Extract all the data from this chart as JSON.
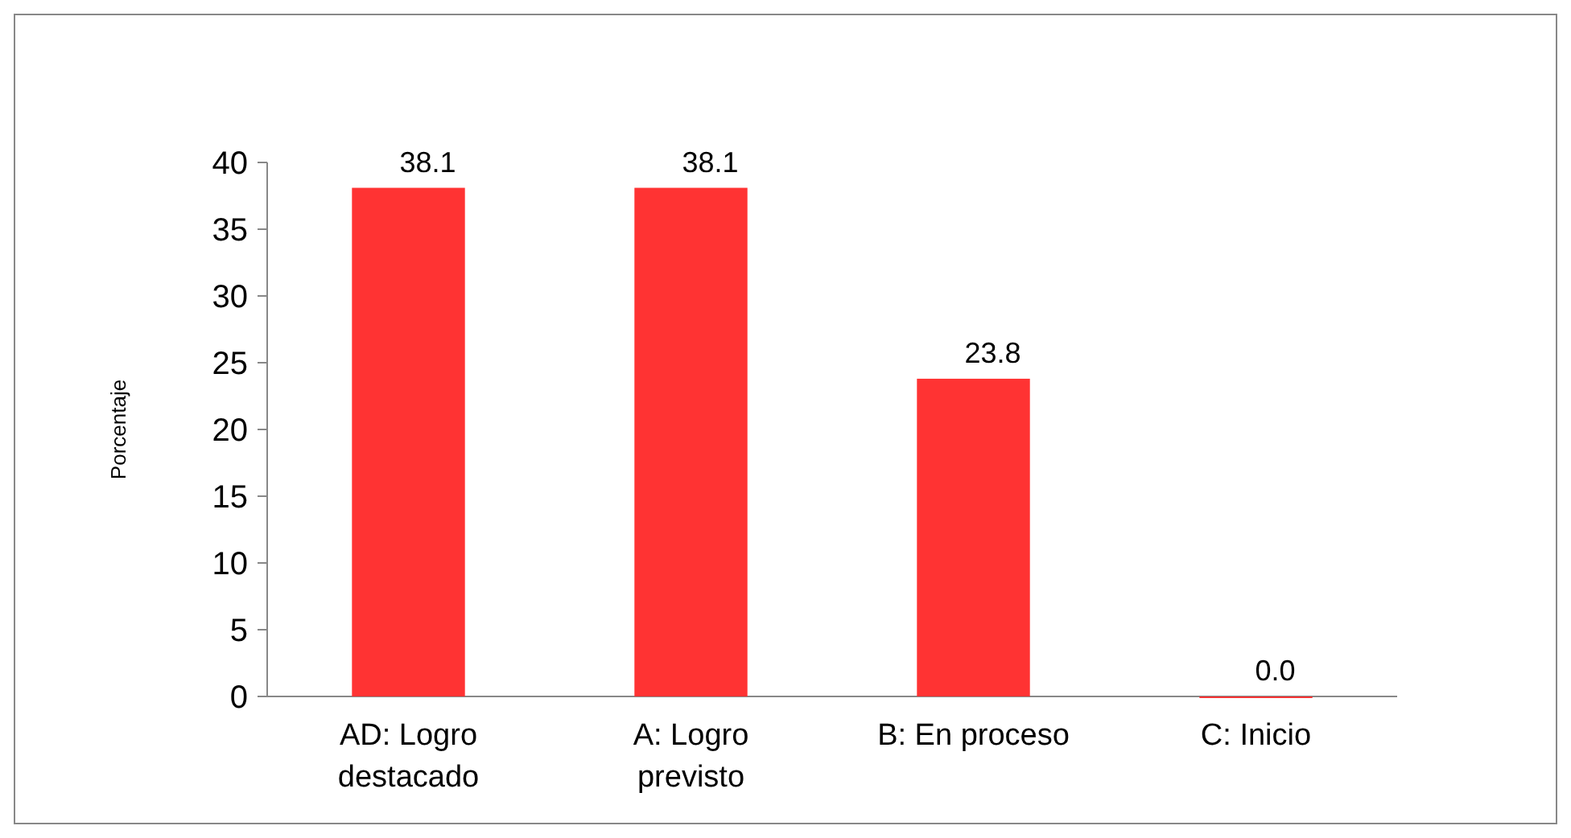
{
  "chart_data": {
    "type": "bar",
    "ylabel": "Porcentaje",
    "categories": [
      "AD: Logro destacado",
      "A: Logro previsto",
      "B: En proceso",
      "C: Inicio"
    ],
    "values": [
      38.1,
      38.1,
      23.8,
      0.0
    ],
    "color": "#ff3333",
    "ylim": [
      0,
      40
    ],
    "yticks": [
      0,
      5,
      10,
      15,
      20,
      25,
      30,
      35,
      40
    ],
    "grid": false,
    "value_labels": [
      "38.1",
      "38.1",
      "23.8",
      "0.0"
    ]
  }
}
